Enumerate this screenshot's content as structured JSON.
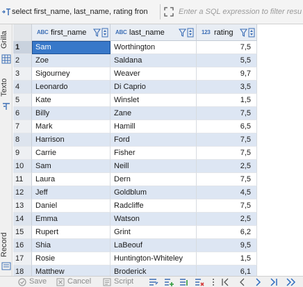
{
  "filter": {
    "query": "select first_name, last_name, rating fron",
    "placeholder": "Enter a SQL expression to filter resu"
  },
  "side_tabs": [
    "Grilla",
    "Texto",
    "Record"
  ],
  "columns": [
    {
      "type_badge": "ABC",
      "name": "first_name"
    },
    {
      "type_badge": "ABC",
      "name": "last_name"
    },
    {
      "type_badge": "123",
      "name": "rating"
    }
  ],
  "rows": [
    {
      "n": "1",
      "first_name": "Sam",
      "last_name": "Worthington",
      "rating": "7,5"
    },
    {
      "n": "2",
      "first_name": "Zoe",
      "last_name": "Saldana",
      "rating": "5,5"
    },
    {
      "n": "3",
      "first_name": "Sigourney",
      "last_name": "Weaver",
      "rating": "9,7"
    },
    {
      "n": "4",
      "first_name": "Leonardo",
      "last_name": "Di Caprio",
      "rating": "3,5"
    },
    {
      "n": "5",
      "first_name": "Kate",
      "last_name": "Winslet",
      "rating": "1,5"
    },
    {
      "n": "6",
      "first_name": "Billy",
      "last_name": "Zane",
      "rating": "7,5"
    },
    {
      "n": "7",
      "first_name": "Mark",
      "last_name": "Hamill",
      "rating": "6,5"
    },
    {
      "n": "8",
      "first_name": "Harrison",
      "last_name": "Ford",
      "rating": "7,5"
    },
    {
      "n": "9",
      "first_name": "Carrie",
      "last_name": "Fisher",
      "rating": "7,5"
    },
    {
      "n": "10",
      "first_name": "Sam",
      "last_name": "Neill",
      "rating": "2,5"
    },
    {
      "n": "11",
      "first_name": "Laura",
      "last_name": "Dern",
      "rating": "7,5"
    },
    {
      "n": "12",
      "first_name": "Jeff",
      "last_name": "Goldblum",
      "rating": "4,5"
    },
    {
      "n": "13",
      "first_name": "Daniel",
      "last_name": "Radcliffe",
      "rating": "7,5"
    },
    {
      "n": "14",
      "first_name": "Emma",
      "last_name": "Watson",
      "rating": "2,5"
    },
    {
      "n": "15",
      "first_name": "Rupert",
      "last_name": "Grint",
      "rating": "6,2"
    },
    {
      "n": "16",
      "first_name": "Shia",
      "last_name": "LaBeouf",
      "rating": "9,5"
    },
    {
      "n": "17",
      "first_name": "Rosie",
      "last_name": "Huntington-Whiteley",
      "rating": "1,5"
    },
    {
      "n": "18",
      "first_name": "Matthew",
      "last_name": "Broderick",
      "rating": "6,1"
    }
  ],
  "toolbar": {
    "save_label": "Save",
    "cancel_label": "Cancel",
    "script_label": "Script"
  },
  "colors": {
    "selected_cell": "#3878c9",
    "alt_row": "#dde6f3",
    "header_bg": "#e8edf4",
    "type_badge": "#3d6fb6"
  }
}
